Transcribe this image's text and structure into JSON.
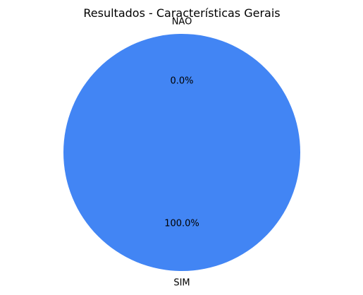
{
  "chart_data": {
    "type": "pie",
    "title": "Resultados - Características Gerais",
    "categories": [
      "NAO",
      "SIM"
    ],
    "values": [
      0,
      100
    ],
    "percent_labels": [
      "0.0%",
      "100.0%"
    ],
    "colors": [
      "#ff7f0e",
      "#4285f4"
    ],
    "start_angle_deg": 90,
    "legend": "none"
  }
}
